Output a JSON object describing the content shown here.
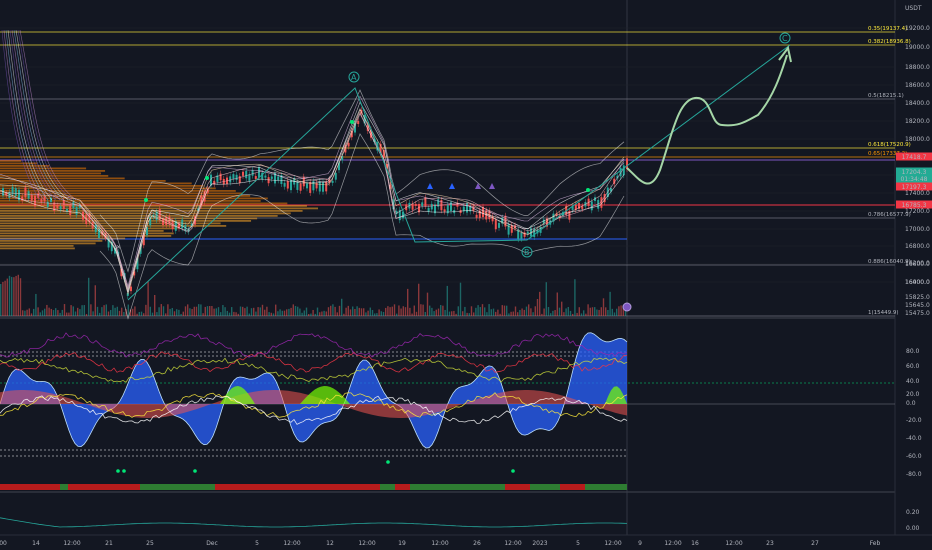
{
  "header": {
    "currency": "USDT"
  },
  "price_axis": {
    "ticks": [
      "19200.0",
      "19000.0",
      "18800.0",
      "18600.0",
      "18400.0",
      "18200.0",
      "18000.0",
      "17800.0",
      "17600.0",
      "17400.0",
      "17200.0",
      "17000.0",
      "16800.0",
      "16600.0",
      "16400.0",
      "16200.0",
      "16000.0",
      "15825.0",
      "15645.0",
      "15475.0"
    ],
    "badges": [
      {
        "text": "17418.7",
        "color": "#f23645"
      },
      {
        "text": "17204.3",
        "color": "#22ab94"
      },
      {
        "text": "01:34:48",
        "color": "#22ab94"
      },
      {
        "text": "17197.3",
        "color": "#f23645"
      },
      {
        "text": "16785.3",
        "color": "#f23645"
      }
    ]
  },
  "fib_levels": [
    {
      "label": "0.35(19137.4)",
      "color": "#ffeb3b"
    },
    {
      "label": "0.382(18936.8)",
      "color": "#ffeb3b"
    },
    {
      "label": "0.5(18215.1)",
      "color": "#b2b5be"
    },
    {
      "label": "0.618(17520.9)",
      "color": "#ffeb3b"
    },
    {
      "label": "0.65(17337.2)",
      "color": "#ff9800"
    },
    {
      "label": "0.786(16577.9)",
      "color": "#b2b5be"
    },
    {
      "label": "0.886(16040.9)",
      "color": "#b2b5be"
    },
    {
      "label": "1(15449.9)",
      "color": "#b2b5be"
    }
  ],
  "wave_labels": [
    "A",
    "B",
    "C"
  ],
  "oscillator_axis": {
    "ticks": [
      "80.0",
      "60.0",
      "40.0",
      "20.0",
      "0.0",
      "-20.0",
      "-40.0",
      "-60.0",
      "-80.0"
    ]
  },
  "lower_axis": {
    "ticks": [
      "0.20",
      "0.00"
    ]
  },
  "time_axis": {
    "ticks": [
      "00",
      "14",
      "12:00",
      "21",
      "25",
      "Dec",
      "5",
      "12:00",
      "12",
      "12:00",
      "19",
      "12:00",
      "26",
      "12:00",
      "2023",
      "5",
      "12:00",
      "9",
      "12:00",
      "16",
      "12:00",
      "23",
      "27",
      "Feb"
    ]
  },
  "colors": {
    "background": "#131722",
    "bull": "#26a69a",
    "bear": "#ef5350",
    "fib": "#ffeb3b",
    "wave_line": "#26a69a",
    "projection": "#a5d6a7",
    "wave_bar": "#2962ff"
  }
}
